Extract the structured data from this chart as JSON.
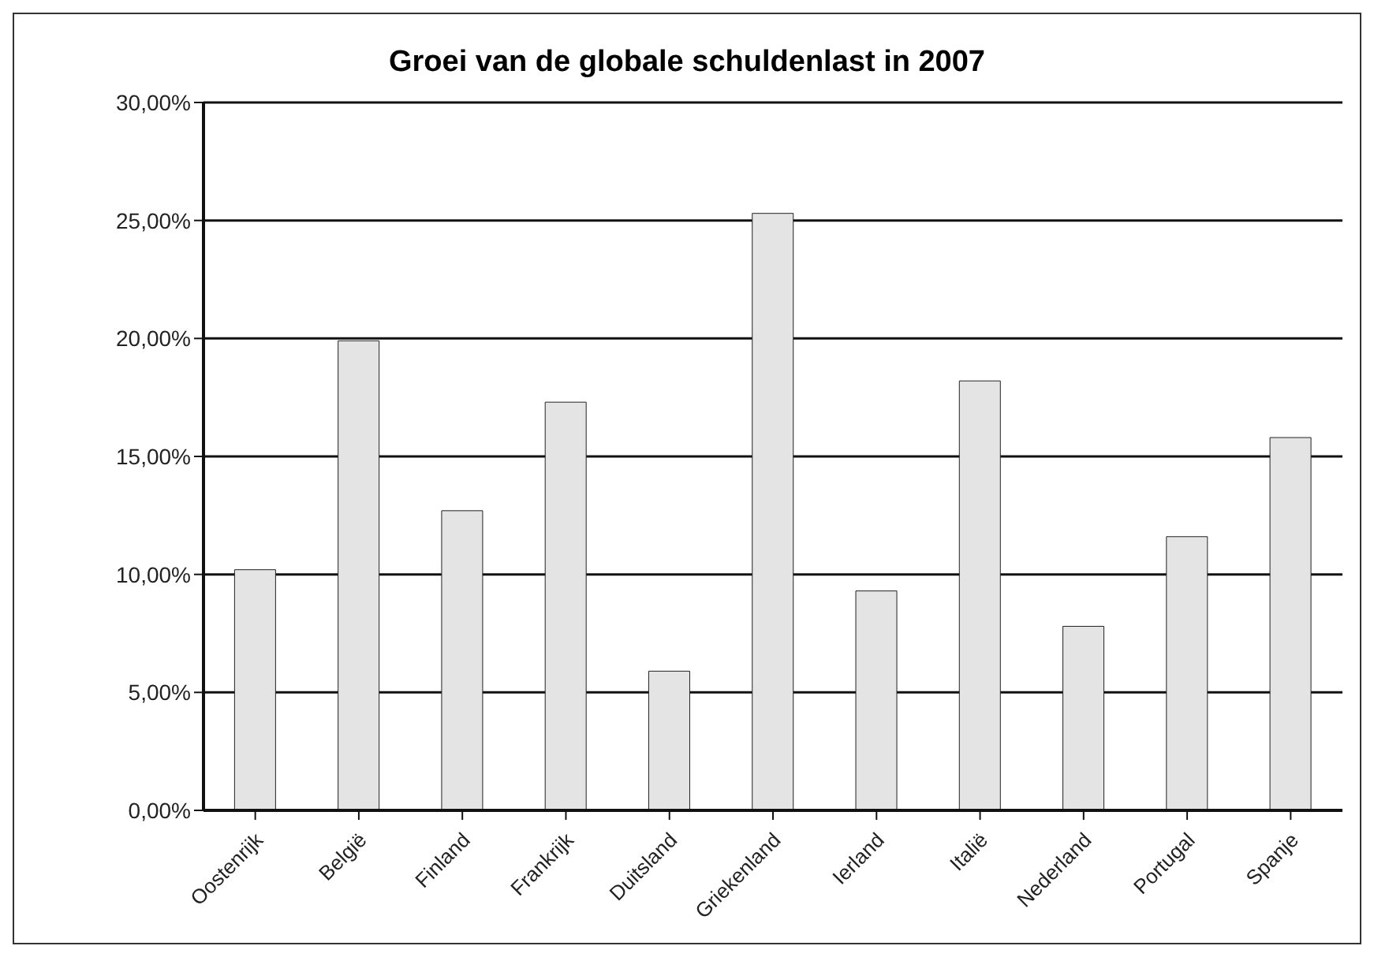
{
  "chart_data": {
    "type": "bar",
    "title": "Groei van de globale schuldenlast in 2007",
    "categories": [
      "Oostenrijk",
      "België",
      "Finland",
      "Frankrijk",
      "Duitsland",
      "Griekenland",
      "Ierland",
      "Italië",
      "Nederland",
      "Portugal",
      "Spanje"
    ],
    "values": [
      10.2,
      19.9,
      12.7,
      17.3,
      5.9,
      25.3,
      9.3,
      18.2,
      7.8,
      11.6,
      15.8
    ],
    "color": "#e4e4e4",
    "ylim": [
      0,
      30
    ],
    "yticks": [
      {
        "value": 0,
        "label": "0,00%"
      },
      {
        "value": 5,
        "label": "5,00%"
      },
      {
        "value": 10,
        "label": "10,00%"
      },
      {
        "value": 15,
        "label": "15,00%"
      },
      {
        "value": 20,
        "label": "20,00%"
      },
      {
        "value": 25,
        "label": "25,00%"
      },
      {
        "value": 30,
        "label": "30,00%"
      }
    ],
    "grid": "y"
  }
}
